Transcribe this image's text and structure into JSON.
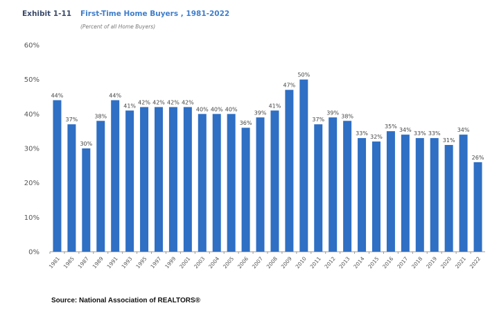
{
  "header": {
    "exhibit": "Exhibit 1-11",
    "title": "First-Time Home Buyers , 1981-2022",
    "subtitle": "(Percent of all Home Buyers)"
  },
  "source": "Source: National Association of REALTORS®",
  "chart_data": {
    "type": "bar",
    "title": "First-Time Home Buyers , 1981-2022",
    "subtitle": "(Percent of all Home Buyers)",
    "categories": [
      "1981",
      "1985",
      "1987",
      "1989",
      "1991",
      "1993",
      "1995",
      "1997",
      "1999",
      "2001",
      "2003",
      "2004",
      "2005",
      "2006",
      "2007",
      "2008",
      "2009",
      "2010",
      "2011",
      "2012",
      "2013",
      "2014",
      "2015",
      "2016",
      "2017",
      "2018",
      "2019",
      "2020",
      "2021",
      "2022"
    ],
    "values": [
      44,
      37,
      30,
      38,
      44,
      41,
      42,
      42,
      42,
      42,
      40,
      40,
      40,
      36,
      39,
      41,
      47,
      50,
      37,
      39,
      38,
      33,
      32,
      35,
      34,
      33,
      33,
      31,
      34,
      26
    ],
    "ylim": [
      0,
      60
    ],
    "yticks": [
      "0%",
      "10%",
      "20%",
      "30%",
      "40%",
      "50%",
      "60%"
    ],
    "unit": "%",
    "grid": false,
    "legend": "none",
    "bar_color": "#2f6fc4"
  }
}
